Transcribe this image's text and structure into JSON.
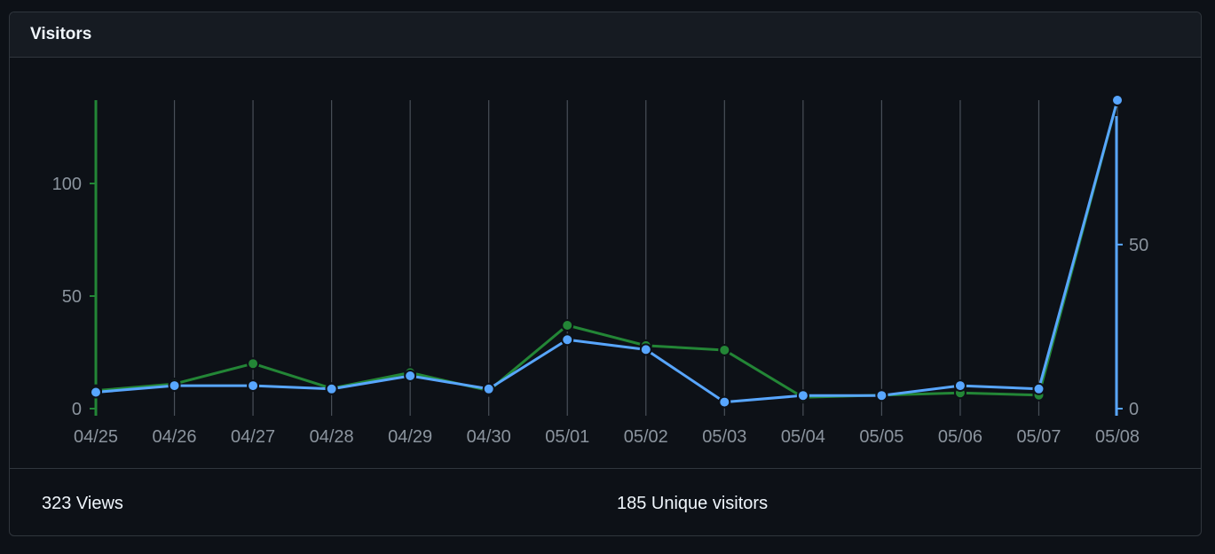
{
  "header": {
    "title": "Visitors"
  },
  "footer": {
    "views_label": "323 Views",
    "uniques_label": "185 Unique visitors"
  },
  "colors": {
    "views": "#238636",
    "uniques": "#58a6ff",
    "grid": "#484f58",
    "tick_text": "#8b949e"
  },
  "chart_data": {
    "type": "line",
    "x": [
      "04/25",
      "04/26",
      "04/27",
      "04/28",
      "04/29",
      "04/30",
      "05/01",
      "05/02",
      "05/03",
      "05/04",
      "05/05",
      "05/06",
      "05/07",
      "05/08"
    ],
    "series": [
      {
        "axis": "left",
        "values": [
          8,
          11,
          20,
          9,
          16,
          8,
          37,
          28,
          26,
          5,
          6,
          7,
          6,
          137
        ]
      },
      {
        "axis": "right",
        "values": [
          5,
          7,
          7,
          6,
          10,
          6,
          21,
          18,
          2,
          4,
          4,
          7,
          6,
          94
        ]
      }
    ],
    "y_left": {
      "range": [
        0,
        137
      ],
      "ticks": [
        0,
        50,
        100
      ]
    },
    "y_right": {
      "range": [
        0,
        94
      ],
      "ticks": [
        0,
        50
      ]
    },
    "grid": "vertical"
  }
}
